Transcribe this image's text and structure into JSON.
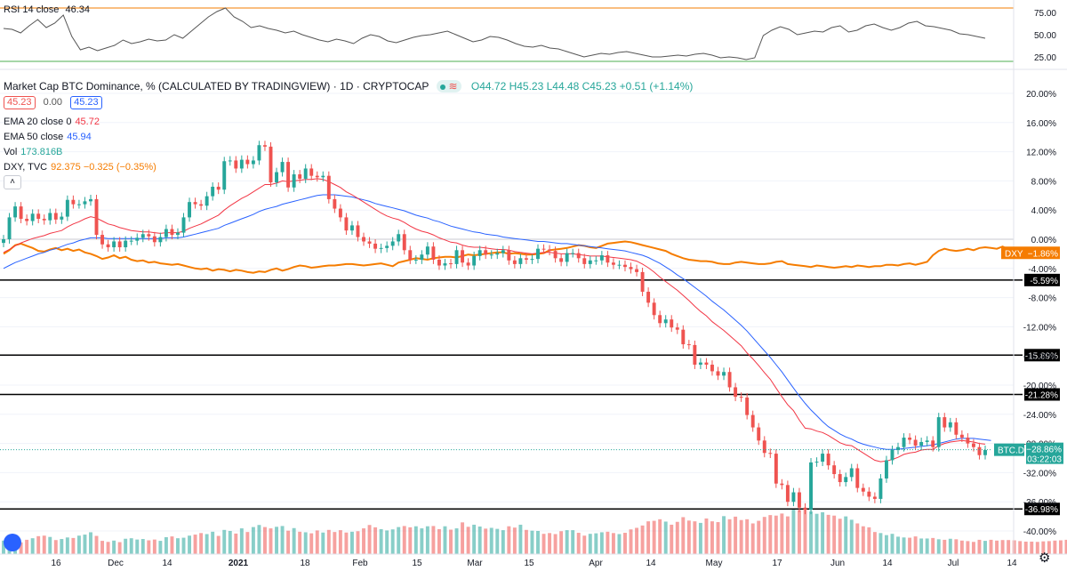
{
  "rsi": {
    "label": "RSI",
    "params": "14 close",
    "value": "46.34",
    "ticks": [
      "75.00",
      "50.00",
      "25.00"
    ],
    "values": [
      57,
      56,
      52,
      60,
      67,
      58,
      63,
      72,
      48,
      33,
      36,
      32,
      35,
      38,
      44,
      40,
      42,
      45,
      43,
      44,
      50,
      46,
      54,
      62,
      70,
      76,
      80,
      70,
      65,
      58,
      60,
      57,
      55,
      52,
      54,
      50,
      47,
      44,
      42,
      45,
      43,
      40,
      46,
      50,
      48,
      43,
      41,
      44,
      47,
      49,
      50,
      52,
      54,
      50,
      46,
      42,
      44,
      48,
      47,
      44,
      40,
      37,
      36,
      38,
      35,
      34,
      31,
      28,
      25,
      27,
      29,
      28,
      30,
      31,
      29,
      27,
      25,
      25,
      26,
      27,
      26,
      28,
      29,
      27,
      24,
      25,
      24,
      22,
      24,
      49,
      55,
      59,
      56,
      50,
      52,
      54,
      53,
      58,
      60,
      53,
      55,
      60,
      62,
      58,
      55,
      58,
      63,
      65,
      60,
      59,
      57,
      55,
      51,
      50,
      48,
      46
    ]
  },
  "header": {
    "title": "Market Cap BTC Dominance, % (CALCULATED BY TRADINGVIEW) · 1D · CRYPTOCAP",
    "ohlc": "O44.72  H45.23  L44.48  C45.23  +0.51 (+1.14%)",
    "sell": "45.23",
    "spread": "0.00",
    "buy": "45.23",
    "flag": "≋"
  },
  "indicators": {
    "ema20_label": "EMA 20 close 0",
    "ema20_value": "45.72",
    "ema50_label": "EMA 50 close",
    "ema50_value": "45.94",
    "vol_label": "Vol",
    "vol_value": "173.816B",
    "dxy_label": "DXY, TVC",
    "dxy_value": "92.375  −0.325 (−0.35%)"
  },
  "collapse_glyph": "˄",
  "settings_glyph": "⚙",
  "colors": {
    "up": "#26a69a",
    "down": "#ef5350",
    "ema20": "#f23645",
    "ema50": "#2962ff",
    "dxy": "#f57c00",
    "hline": "#000000",
    "rsi_top": "#f57c00",
    "rsi_bottom": "#4caf50"
  },
  "chart_data": {
    "type": "candlestick",
    "title": "Market Cap BTC Dominance, % (CALCULATED BY TRADINGVIEW) · 1D · CRYPTOCAP",
    "y_axis_ticks": [
      "20.00%",
      "16.00%",
      "12.00%",
      "8.00%",
      "4.00%",
      "0.00%",
      "-4.00%",
      "-8.00%",
      "-12.00%",
      "-16.00%",
      "-20.00%",
      "-24.00%",
      "-28.00%",
      "-32.00%",
      "-36.00%",
      "-40.00%"
    ],
    "x_axis_ticks": [
      "16",
      "Dec",
      "14",
      "2021",
      "18",
      "Feb",
      "15",
      "Mar",
      "15",
      "Apr",
      "14",
      "May",
      "17",
      "Jun",
      "14",
      "Jul",
      "14"
    ],
    "horizontal_levels": [
      "-5.59%",
      "-15.89%",
      "-21.28%",
      "-36.98%"
    ],
    "badges": [
      {
        "label": "DXY",
        "value": "−1.86%"
      },
      {
        "label": "BTC.D",
        "value": "−28.86%",
        "time": "03:22:03"
      }
    ],
    "ylim": [
      -42,
      21
    ],
    "close_pct": [
      0.0,
      3.0,
      4.5,
      2.8,
      2.5,
      3.5,
      2.8,
      2.6,
      3.6,
      2.7,
      3.1,
      5.4,
      4.8,
      4.8,
      5.2,
      5.5,
      0.6,
      -0.7,
      -1.1,
      -0.3,
      -1.1,
      -0.2,
      -0.2,
      0.2,
      0.7,
      0.4,
      -0.4,
      0.3,
      1.4,
      0.6,
      0.9,
      3.0,
      5.1,
      4.8,
      4.6,
      5.9,
      7.2,
      6.8,
      10.7,
      10.8,
      9.7,
      10.9,
      10.3,
      10.8,
      12.9,
      12.7,
      7.8,
      9.2,
      10.6,
      7.1,
      8.9,
      8.3,
      9.7,
      8.7,
      8.5,
      8.7,
      5.5,
      4.2,
      3.0,
      1.2,
      1.9,
      0.3,
      -0.3,
      -0.6,
      -1.3,
      -1.2,
      -0.9,
      -0.3,
      0.7,
      -1.5,
      -2.8,
      -2.8,
      -2.1,
      -1.0,
      -2.8,
      -3.6,
      -3.3,
      -3.4,
      -1.5,
      -3.2,
      -3.6,
      -2.3,
      -1.5,
      -2.1,
      -2.1,
      -1.9,
      -1.5,
      -2.9,
      -3.4,
      -2.6,
      -2.8,
      -2.7,
      -1.3,
      -1.4,
      -1.6,
      -2.6,
      -3.1,
      -1.9,
      -1.9,
      -2.6,
      -3.4,
      -2.9,
      -2.9,
      -2.2,
      -3.2,
      -3.5,
      -3.5,
      -3.8,
      -4.1,
      -4.5,
      -7.2,
      -8.7,
      -10.4,
      -11.5,
      -11.0,
      -12.1,
      -12.4,
      -14.4,
      -14.5,
      -17.2,
      -16.9,
      -17.2,
      -18.1,
      -18.7,
      -18.2,
      -20.3,
      -21.6,
      -21.7,
      -24.1,
      -25.8,
      -27.6,
      -29.3,
      -29.4,
      -33.5,
      -33.7,
      -36.0,
      -34.7,
      -36.8,
      -37.1,
      -30.6,
      -30.5,
      -29.4,
      -31.0,
      -32.2,
      -33.3,
      -32.6,
      -31.4,
      -34.1,
      -34.6,
      -35.3,
      -35.6,
      -32.8,
      -30.3,
      -28.9,
      -28.5,
      -27.2,
      -27.5,
      -28.3,
      -27.8,
      -27.6,
      -28.5,
      -24.4,
      -25.8,
      -25.1,
      -26.8,
      -27.2,
      -28.0,
      -28.5,
      -29.6,
      -28.9
    ],
    "ema20_pct": [
      -1.8,
      -1.4,
      -0.9,
      -0.5,
      -0.2,
      0.1,
      0.3,
      0.5,
      0.8,
      1.0,
      1.2,
      1.7,
      2.1,
      2.4,
      2.8,
      3.1,
      2.9,
      2.5,
      2.1,
      1.9,
      1.6,
      1.4,
      1.2,
      1.1,
      1.0,
      1.0,
      0.9,
      0.8,
      0.9,
      0.9,
      0.9,
      1.1,
      1.5,
      1.8,
      2.1,
      2.5,
      2.9,
      3.3,
      4.0,
      4.6,
      5.1,
      5.6,
      6.0,
      6.5,
      7.0,
      7.5,
      7.5,
      7.7,
      8.0,
      7.9,
      8.0,
      8.1,
      8.2,
      8.2,
      8.3,
      8.2,
      7.9,
      7.5,
      7.1,
      6.5,
      6.1,
      5.6,
      5.1,
      4.6,
      4.1,
      3.6,
      3.2,
      2.9,
      2.7,
      2.3,
      1.8,
      1.4,
      1.1,
      0.9,
      0.6,
      0.2,
      -0.1,
      -0.4,
      -0.5,
      -0.8,
      -1.0,
      -1.1,
      -1.1,
      -1.2,
      -1.3,
      -1.4,
      -1.4,
      -1.5,
      -1.7,
      -1.8,
      -1.9,
      -2.0,
      -1.9,
      -1.8,
      -1.8,
      -1.9,
      -2.0,
      -2.0,
      -2.0,
      -2.1,
      -2.2,
      -2.3,
      -2.3,
      -2.3,
      -2.4,
      -2.5,
      -2.6,
      -2.7,
      -2.8,
      -3.0,
      -3.4,
      -3.9,
      -4.5,
      -5.2,
      -5.8,
      -6.4,
      -7.0,
      -7.7,
      -8.4,
      -9.2,
      -9.9,
      -10.5,
      -11.3,
      -11.9,
      -12.5,
      -13.2,
      -13.9,
      -14.6,
      -15.6,
      -16.4,
      -17.3,
      -18.3,
      -19.2,
      -20.4,
      -21.6,
      -22.7,
      -23.5,
      -24.8,
      -25.9,
      -26.0,
      -26.3,
      -26.5,
      -26.9,
      -27.4,
      -27.9,
      -28.2,
      -28.3,
      -28.8,
      -29.3,
      -29.8,
      -30.3,
      -30.5,
      -30.4,
      -30.2,
      -29.9,
      -29.5,
      -29.3,
      -29.2,
      -28.9,
      -28.8,
      -28.8,
      -28.3,
      -28.0,
      -27.8,
      -27.7,
      -27.6,
      -27.7,
      -27.8,
      -28.0,
      -28.1
    ],
    "ema50_pct": [
      -4.0,
      -3.6,
      -3.2,
      -2.9,
      -2.6,
      -2.3,
      -2.0,
      -1.8,
      -1.5,
      -1.3,
      -1.0,
      -0.7,
      -0.5,
      -0.2,
      0.0,
      0.2,
      0.2,
      0.2,
      0.1,
      0.1,
      0.1,
      0.1,
      0.1,
      0.1,
      0.1,
      0.1,
      0.1,
      0.1,
      0.2,
      0.2,
      0.2,
      0.3,
      0.5,
      0.7,
      0.9,
      1.1,
      1.3,
      1.5,
      1.9,
      2.2,
      2.5,
      2.8,
      3.1,
      3.4,
      3.8,
      4.1,
      4.3,
      4.5,
      4.8,
      5.0,
      5.2,
      5.4,
      5.6,
      5.8,
      6.0,
      6.1,
      6.1,
      6.1,
      6.0,
      5.9,
      5.8,
      5.6,
      5.4,
      5.2,
      4.9,
      4.7,
      4.5,
      4.3,
      4.1,
      3.9,
      3.6,
      3.3,
      3.1,
      2.9,
      2.6,
      2.4,
      2.1,
      1.8,
      1.6,
      1.4,
      1.2,
      1.0,
      0.9,
      0.7,
      0.6,
      0.5,
      0.3,
      0.2,
      0.1,
      0.0,
      -0.1,
      -0.2,
      -0.3,
      -0.3,
      -0.4,
      -0.5,
      -0.6,
      -0.6,
      -0.7,
      -0.8,
      -0.9,
      -1.0,
      -1.1,
      -1.2,
      -1.3,
      -1.4,
      -1.5,
      -1.6,
      -1.8,
      -2.0,
      -2.2,
      -2.5,
      -2.9,
      -3.3,
      -3.8,
      -4.3,
      -4.9,
      -5.4,
      -6.0,
      -6.6,
      -7.2,
      -7.8,
      -8.5,
      -9.1,
      -9.7,
      -10.4,
      -11.1,
      -11.8,
      -12.6,
      -13.5,
      -14.4,
      -15.3,
      -16.2,
      -17.2,
      -18.2,
      -19.3,
      -20.4,
      -21.5,
      -22.5,
      -23.4,
      -24.2,
      -25.0,
      -25.7,
      -26.2,
      -26.7,
      -27.1,
      -27.4,
      -27.8,
      -28.1,
      -28.3,
      -28.5,
      -28.7,
      -28.8,
      -28.8,
      -28.8,
      -28.7,
      -28.6,
      -28.5,
      -28.4,
      -28.3,
      -28.2,
      -28.0,
      -27.8,
      -27.6,
      -27.4,
      -27.3,
      -27.3,
      -27.3,
      -27.4,
      -27.5,
      -27.6
    ],
    "dxy_pct": [
      -2.0,
      -1.5,
      -0.8,
      -0.6,
      -0.9,
      -1.2,
      -1.6,
      -1.7,
      -1.4,
      -1.2,
      -1.5,
      -1.3,
      -1.6,
      -1.4,
      -1.8,
      -2.0,
      -2.3,
      -2.7,
      -2.5,
      -2.2,
      -2.6,
      -2.4,
      -2.8,
      -3.0,
      -2.9,
      -3.2,
      -3.1,
      -3.3,
      -3.4,
      -3.5,
      -3.4,
      -3.6,
      -3.8,
      -4.0,
      -4.1,
      -4.0,
      -4.3,
      -4.1,
      -4.2,
      -4.4,
      -4.2,
      -4.3,
      -4.5,
      -4.6,
      -4.4,
      -4.5,
      -4.2,
      -4.0,
      -4.3,
      -4.1,
      -3.8,
      -3.6,
      -3.7,
      -3.9,
      -3.8,
      -3.7,
      -3.6,
      -3.6,
      -3.5,
      -3.4,
      -3.4,
      -3.5,
      -3.6,
      -3.5,
      -3.4,
      -3.3,
      -3.5,
      -3.7,
      -3.2,
      -3.0,
      -2.8,
      -2.6,
      -2.7,
      -2.8,
      -2.6,
      -2.5,
      -2.4,
      -2.4,
      -2.5,
      -2.3,
      -2.1,
      -2.2,
      -2.1,
      -2.0,
      -1.9,
      -1.8,
      -1.8,
      -2.0,
      -1.9,
      -2.0,
      -2.1,
      -2.1,
      -2.0,
      -1.9,
      -1.5,
      -1.4,
      -1.3,
      -1.2,
      -1.0,
      -0.8,
      -0.9,
      -1.1,
      -1.2,
      -0.9,
      -0.6,
      -0.5,
      -0.4,
      -0.3,
      -0.4,
      -0.6,
      -0.8,
      -1.0,
      -1.2,
      -1.4,
      -1.6,
      -2.0,
      -2.3,
      -2.6,
      -2.8,
      -2.9,
      -3.0,
      -3.0,
      -3.1,
      -3.3,
      -3.4,
      -3.4,
      -3.2,
      -3.1,
      -3.2,
      -3.3,
      -3.4,
      -3.4,
      -3.3,
      -3.1,
      -3.0,
      -3.4,
      -3.5,
      -3.6,
      -3.7,
      -3.8,
      -3.6,
      -3.7,
      -3.8,
      -3.9,
      -3.8,
      -3.7,
      -3.8,
      -3.6,
      -3.7,
      -3.8,
      -3.7,
      -3.7,
      -3.5,
      -3.5,
      -3.6,
      -3.4,
      -3.3,
      -3.5,
      -3.3,
      -3.1,
      -2.2,
      -1.6,
      -1.3,
      -1.5,
      -1.6,
      -1.5,
      -1.3,
      -1.5,
      -1.2,
      -1.1,
      -1.2,
      -1.3,
      -1.0,
      -1.4,
      -1.9
    ],
    "volume_B": [
      52,
      55,
      63,
      45,
      55,
      61,
      69,
      71,
      66,
      54,
      58,
      64,
      62,
      71,
      75,
      84,
      70,
      51,
      47,
      52,
      46,
      59,
      61,
      56,
      58,
      53,
      56,
      51,
      65,
      68,
      61,
      63,
      71,
      75,
      81,
      77,
      86,
      70,
      93,
      89,
      79,
      99,
      85,
      104,
      112,
      104,
      99,
      105,
      108,
      90,
      100,
      86,
      84,
      80,
      91,
      83,
      93,
      85,
      92,
      83,
      86,
      88,
      99,
      112,
      103,
      96,
      91,
      95,
      104,
      108,
      103,
      107,
      99,
      107,
      108,
      96,
      107,
      94,
      99,
      122,
      105,
      113,
      106,
      98,
      101,
      97,
      92,
      107,
      102,
      113,
      93,
      90,
      89,
      78,
      81,
      77,
      88,
      92,
      92,
      82,
      71,
      78,
      80,
      84,
      86,
      81,
      77,
      82,
      95,
      101,
      110,
      126,
      128,
      134,
      125,
      113,
      124,
      142,
      129,
      126,
      120,
      137,
      126,
      123,
      146,
      134,
      144,
      131,
      134,
      118,
      128,
      143,
      150,
      148,
      156,
      145,
      171,
      169,
      170,
      164,
      155,
      161,
      151,
      148,
      136,
      145,
      132,
      118,
      107,
      103,
      85,
      81,
      73,
      78,
      67,
      64,
      63,
      68,
      60,
      60,
      62,
      57,
      55,
      59,
      57,
      52,
      50,
      47,
      55,
      51,
      55,
      52,
      54,
      54,
      53,
      50,
      48,
      48,
      47,
      49,
      50,
      52,
      53,
      55,
      57,
      60,
      62,
      64,
      66,
      68,
      70,
      68,
      66,
      64,
      62,
      60,
      58,
      56,
      55,
      54,
      56,
      58
    ]
  }
}
